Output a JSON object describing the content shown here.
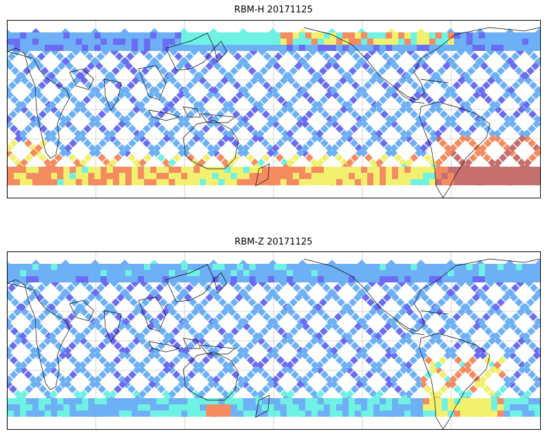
{
  "panels": [
    {
      "title": "RBM-H 20171125",
      "variable": "RBM-H",
      "date": "20171125",
      "colormap": "jet",
      "hot_zones": [
        {
          "region": "southern Atlantic / south of South America",
          "level": 0.9
        },
        {
          "region": "southern Indian Ocean near Africa",
          "level": 0.8
        },
        {
          "region": "southern ocean belt",
          "level": 0.65
        },
        {
          "region": "northern Pacific band",
          "level": 0.6
        },
        {
          "region": "northern Atlantic / Europe band",
          "level": 0.35
        }
      ]
    },
    {
      "title": "RBM-Z 20171125",
      "variable": "RBM-Z",
      "date": "20171125",
      "colormap": "jet",
      "hot_zones": [
        {
          "region": "South America / South Atlantic",
          "level": 0.7
        },
        {
          "region": "southern ocean belt",
          "level": 0.35
        },
        {
          "region": "south of Australia",
          "level": 0.75
        }
      ]
    }
  ],
  "colors": {
    "low": "#5a5ef0",
    "mid_low": "#5fa8f5",
    "mid": "#60f0e0",
    "mid_high": "#f0f060",
    "high": "#f58050",
    "max": "#c06060",
    "coastline": "#000000",
    "grid": "#b0b0b0"
  },
  "projection": "PlateCarree, central longitude 180°",
  "gridlines": true
}
